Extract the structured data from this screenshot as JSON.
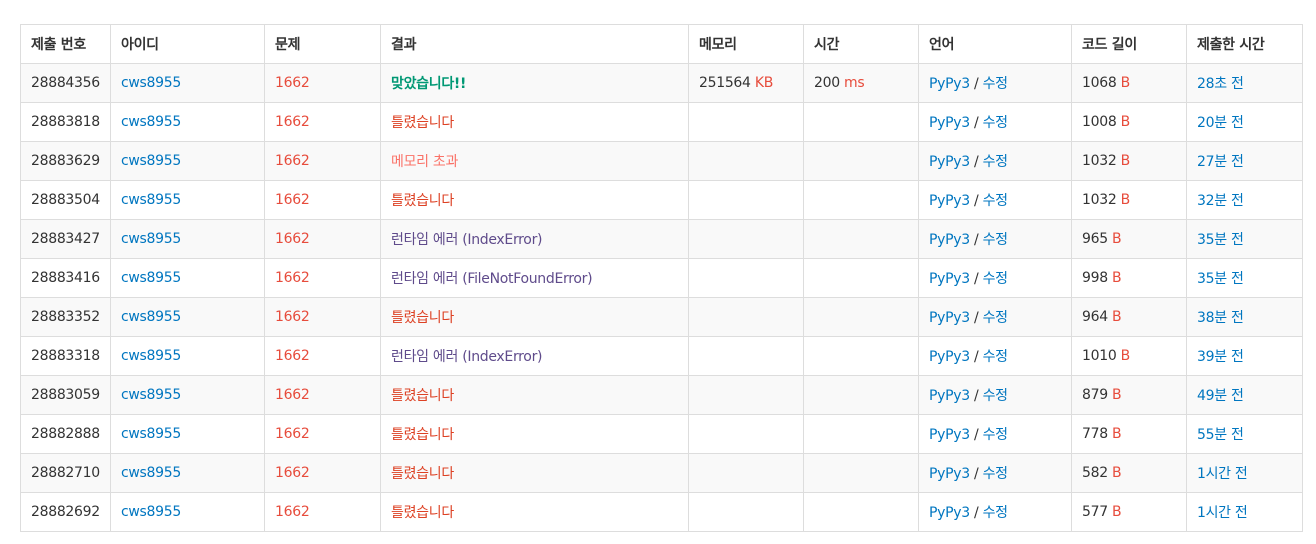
{
  "colors": {
    "link": "#0076c0",
    "problem": "#e74c3c",
    "unit": "#e74c3c",
    "accepted": "#009874",
    "wrong_answer": "#dd4124",
    "memory_exceeded": "#fa7268",
    "runtime_error": "#5f4b8b"
  },
  "table": {
    "headers": {
      "submission_id": "제출 번호",
      "user_id": "아이디",
      "problem": "문제",
      "result": "결과",
      "memory": "메모리",
      "time": "시간",
      "language": "언어",
      "code_length": "코드 길이",
      "submitted_at": "제출한 시간"
    },
    "rows": [
      {
        "id": "28884356",
        "user": "cws8955",
        "problem": "1662",
        "result": "맞았습니다!!",
        "result_type": "ac",
        "memory": "251564",
        "memory_unit": "KB",
        "time": "200",
        "time_unit": "ms",
        "lang": "PyPy3",
        "sep": " / ",
        "edit": "수정",
        "length": "1068",
        "length_unit": "B",
        "submitted": "28초 전"
      },
      {
        "id": "28883818",
        "user": "cws8955",
        "problem": "1662",
        "result": "틀렸습니다",
        "result_type": "wa",
        "memory": "",
        "memory_unit": "",
        "time": "",
        "time_unit": "",
        "lang": "PyPy3",
        "sep": " / ",
        "edit": "수정",
        "length": "1008",
        "length_unit": "B",
        "submitted": "20분 전"
      },
      {
        "id": "28883629",
        "user": "cws8955",
        "problem": "1662",
        "result": "메모리 초과",
        "result_type": "mle",
        "memory": "",
        "memory_unit": "",
        "time": "",
        "time_unit": "",
        "lang": "PyPy3",
        "sep": " / ",
        "edit": "수정",
        "length": "1032",
        "length_unit": "B",
        "submitted": "27분 전"
      },
      {
        "id": "28883504",
        "user": "cws8955",
        "problem": "1662",
        "result": "틀렸습니다",
        "result_type": "wa",
        "memory": "",
        "memory_unit": "",
        "time": "",
        "time_unit": "",
        "lang": "PyPy3",
        "sep": " / ",
        "edit": "수정",
        "length": "1032",
        "length_unit": "B",
        "submitted": "32분 전"
      },
      {
        "id": "28883427",
        "user": "cws8955",
        "problem": "1662",
        "result": "런타임 에러 (IndexError)",
        "result_type": "rte",
        "memory": "",
        "memory_unit": "",
        "time": "",
        "time_unit": "",
        "lang": "PyPy3",
        "sep": " / ",
        "edit": "수정",
        "length": "965",
        "length_unit": "B",
        "submitted": "35분 전"
      },
      {
        "id": "28883416",
        "user": "cws8955",
        "problem": "1662",
        "result": "런타임 에러 (FileNotFoundError)",
        "result_type": "rte",
        "memory": "",
        "memory_unit": "",
        "time": "",
        "time_unit": "",
        "lang": "PyPy3",
        "sep": " / ",
        "edit": "수정",
        "length": "998",
        "length_unit": "B",
        "submitted": "35분 전"
      },
      {
        "id": "28883352",
        "user": "cws8955",
        "problem": "1662",
        "result": "틀렸습니다",
        "result_type": "wa",
        "memory": "",
        "memory_unit": "",
        "time": "",
        "time_unit": "",
        "lang": "PyPy3",
        "sep": " / ",
        "edit": "수정",
        "length": "964",
        "length_unit": "B",
        "submitted": "38분 전"
      },
      {
        "id": "28883318",
        "user": "cws8955",
        "problem": "1662",
        "result": "런타임 에러 (IndexError)",
        "result_type": "rte",
        "memory": "",
        "memory_unit": "",
        "time": "",
        "time_unit": "",
        "lang": "PyPy3",
        "sep": " / ",
        "edit": "수정",
        "length": "1010",
        "length_unit": "B",
        "submitted": "39분 전"
      },
      {
        "id": "28883059",
        "user": "cws8955",
        "problem": "1662",
        "result": "틀렸습니다",
        "result_type": "wa",
        "memory": "",
        "memory_unit": "",
        "time": "",
        "time_unit": "",
        "lang": "PyPy3",
        "sep": " / ",
        "edit": "수정",
        "length": "879",
        "length_unit": "B",
        "submitted": "49분 전"
      },
      {
        "id": "28882888",
        "user": "cws8955",
        "problem": "1662",
        "result": "틀렸습니다",
        "result_type": "wa",
        "memory": "",
        "memory_unit": "",
        "time": "",
        "time_unit": "",
        "lang": "PyPy3",
        "sep": " / ",
        "edit": "수정",
        "length": "778",
        "length_unit": "B",
        "submitted": "55분 전"
      },
      {
        "id": "28882710",
        "user": "cws8955",
        "problem": "1662",
        "result": "틀렸습니다",
        "result_type": "wa",
        "memory": "",
        "memory_unit": "",
        "time": "",
        "time_unit": "",
        "lang": "PyPy3",
        "sep": " / ",
        "edit": "수정",
        "length": "582",
        "length_unit": "B",
        "submitted": "1시간 전"
      },
      {
        "id": "28882692",
        "user": "cws8955",
        "problem": "1662",
        "result": "틀렸습니다",
        "result_type": "wa",
        "memory": "",
        "memory_unit": "",
        "time": "",
        "time_unit": "",
        "lang": "PyPy3",
        "sep": " / ",
        "edit": "수정",
        "length": "577",
        "length_unit": "B",
        "submitted": "1시간 전"
      }
    ]
  }
}
